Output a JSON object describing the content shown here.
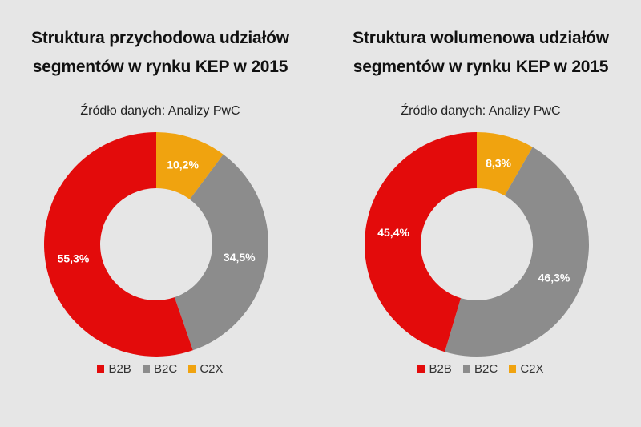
{
  "chart_data": [
    {
      "type": "pie",
      "title_lines": [
        "Struktura przychodowa udziałów",
        "segmentów w rynku KEP w 2015"
      ],
      "source": "Źródło danych: Analizy PwC",
      "categories": [
        "B2B",
        "B2C",
        "C2X"
      ],
      "values": [
        55.3,
        34.5,
        10.2
      ],
      "labels": [
        "55,3%",
        "34,5%",
        "10,2%"
      ],
      "colors": [
        "#e30b0b",
        "#8c8c8c",
        "#f0a30f"
      ],
      "hole": 0.5,
      "legend": "bottom"
    },
    {
      "type": "pie",
      "title_lines": [
        "Struktura wolumenowa udziałów",
        "segmentów w rynku KEP w 2015"
      ],
      "source": "Źródło danych: Analizy PwC",
      "categories": [
        "B2B",
        "B2C",
        "C2X"
      ],
      "values": [
        45.4,
        46.3,
        8.3
      ],
      "labels": [
        "45,4%",
        "46,3%",
        "8,3%"
      ],
      "colors": [
        "#e30b0b",
        "#8c8c8c",
        "#f0a30f"
      ],
      "hole": 0.5,
      "legend": "bottom"
    }
  ]
}
